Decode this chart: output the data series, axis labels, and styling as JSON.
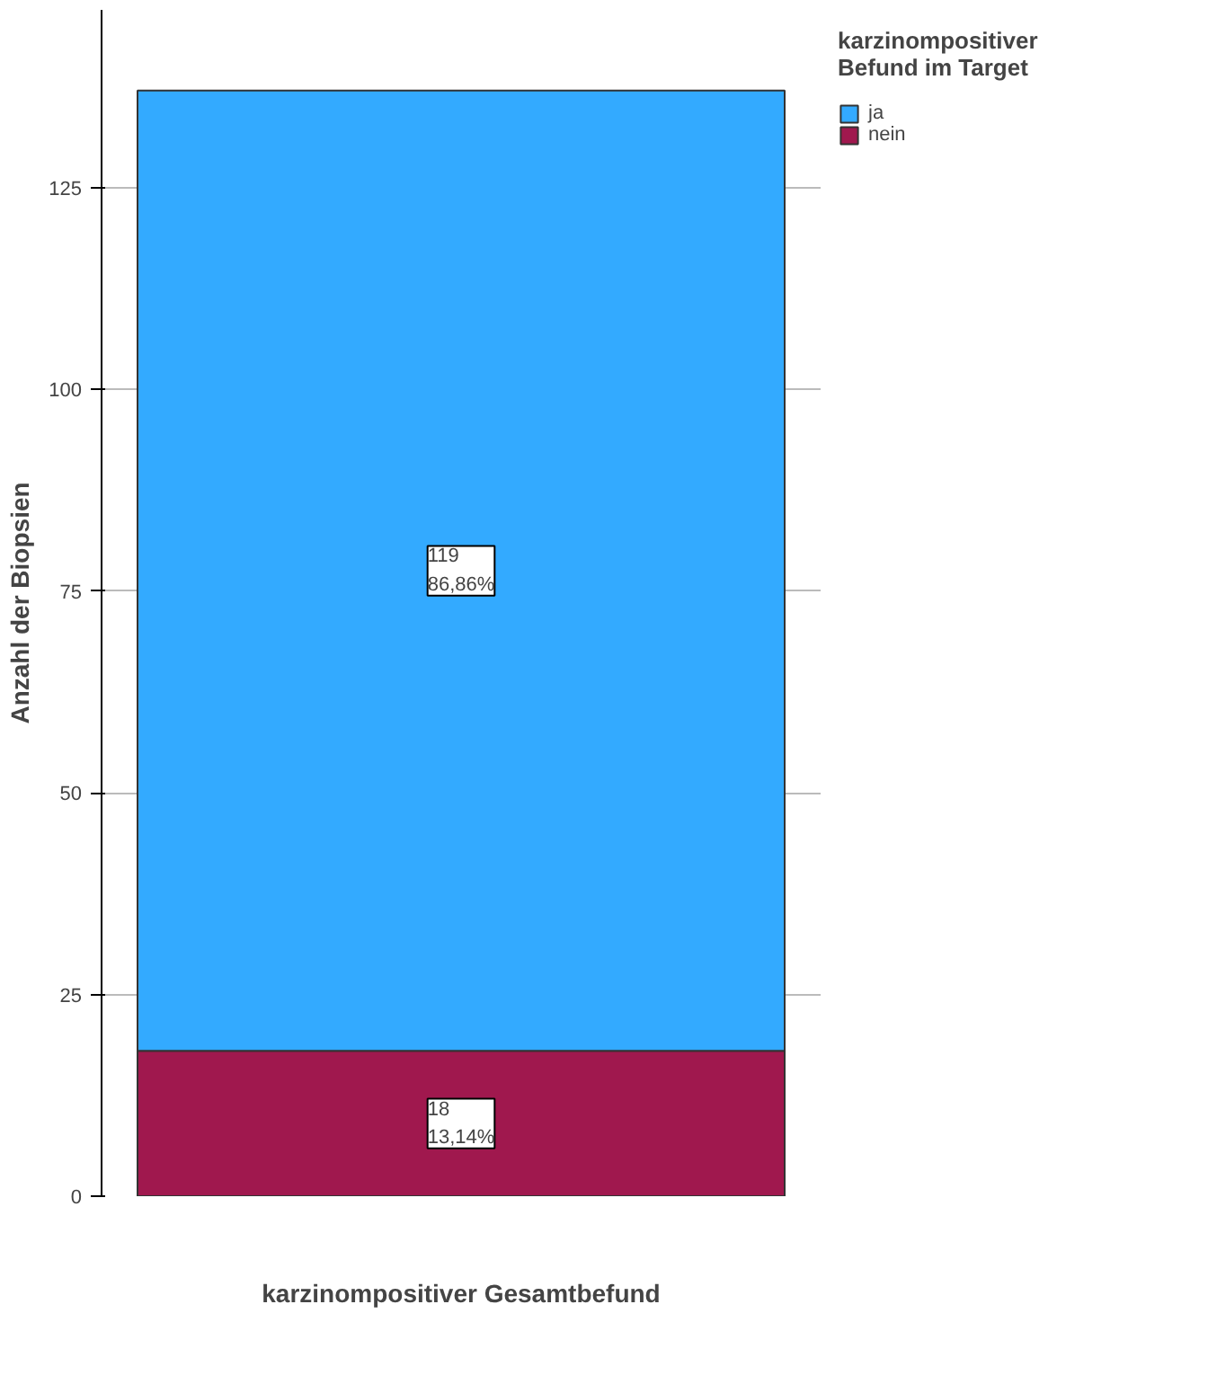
{
  "chart_data": {
    "type": "bar",
    "stacked": true,
    "categories": [
      null
    ],
    "xlabel": "karzinompositiver Gesamtbefund",
    "ylabel": "Anzahl der Biopsien",
    "legend_title": "karzinompositiver Befund im Target",
    "series": [
      {
        "name": "nein",
        "color": "#a0184e",
        "values": [
          18
        ],
        "value_labels": [
          "18\n13,14%"
        ]
      },
      {
        "name": "ja",
        "color": "#33aaff",
        "values": [
          119
        ],
        "value_labels": [
          "119\n86,86%"
        ]
      }
    ],
    "ylim": [
      0,
      147
    ],
    "yticks": [
      0,
      25,
      50,
      75,
      100,
      125
    ],
    "grid": "y",
    "legend": "top right"
  }
}
